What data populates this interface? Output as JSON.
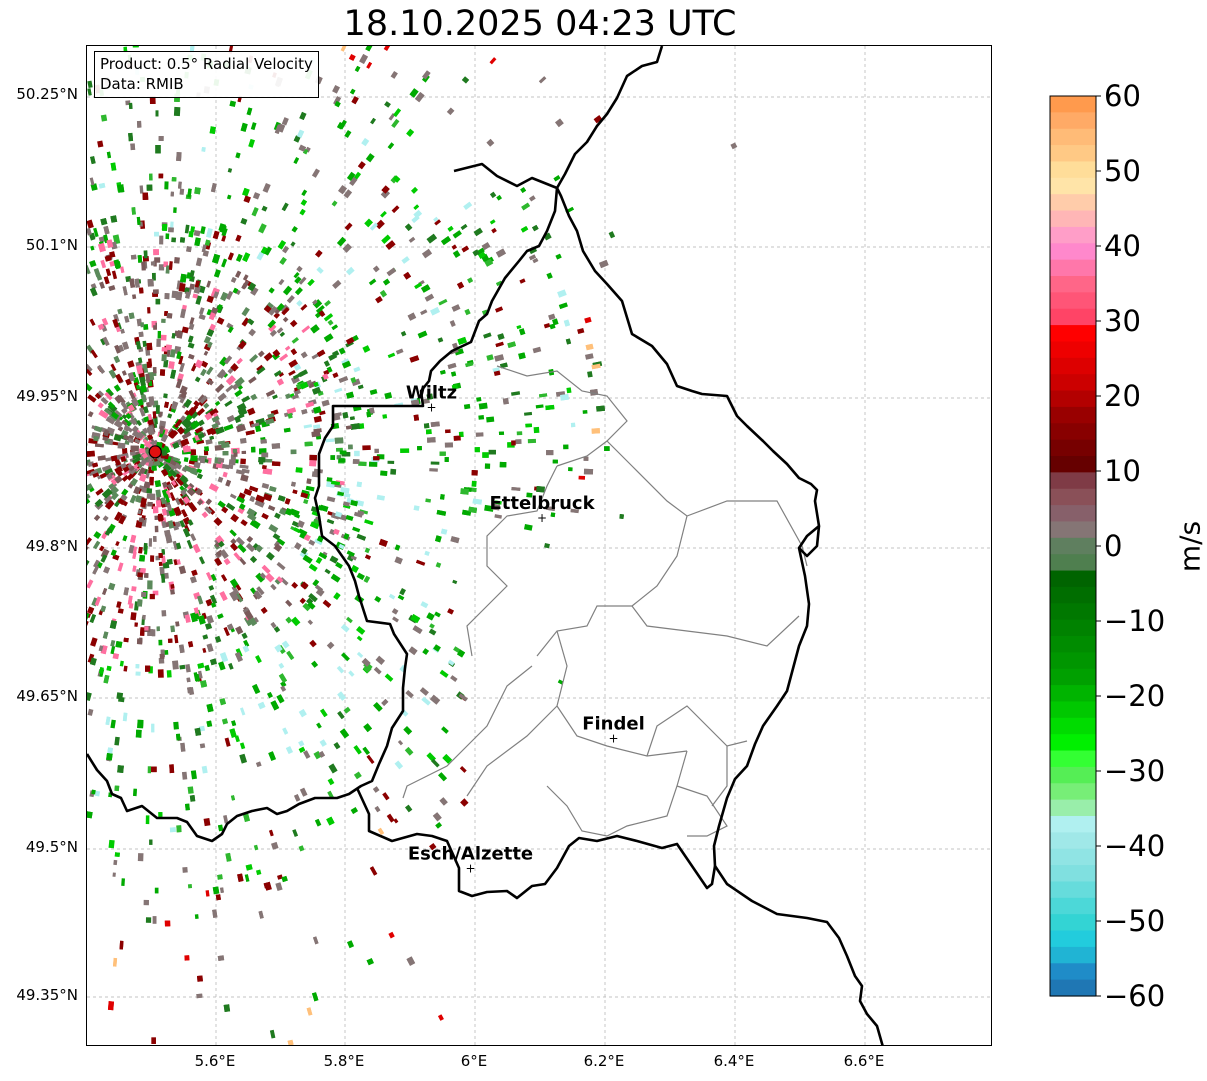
{
  "title": "18.10.2025 04:23 UTC",
  "info_box": {
    "product": "Product: 0.5° Radial Velocity",
    "data": "Data: RMIB"
  },
  "axes": {
    "lat_ticks": [
      "50.25°N",
      "50.1°N",
      "49.95°N",
      "49.8°N",
      "49.65°N",
      "49.5°N",
      "49.35°N"
    ],
    "lon_ticks": [
      "5.6°E",
      "5.8°E",
      "6°E",
      "6.2°E",
      "6.4°E",
      "6.6°E"
    ]
  },
  "cities": [
    {
      "name": "Wiltz",
      "lon": 5.93,
      "lat": 49.96
    },
    {
      "name": "Ettelbruck",
      "lon": 6.1,
      "lat": 49.85
    },
    {
      "name": "Findel",
      "lon": 6.21,
      "lat": 49.63
    },
    {
      "name": "Esch/Alzette",
      "lon": 5.99,
      "lat": 49.5
    }
  ],
  "radar_site": {
    "lon": 5.505,
    "lat": 49.915,
    "color": "#e01010"
  },
  "colorbar": {
    "label": "m/s",
    "min": -60,
    "max": 60,
    "ticks": [
      "60",
      "50",
      "40",
      "30",
      "20",
      "10",
      "0",
      "−10",
      "−20",
      "−30",
      "−40",
      "−50",
      "−60"
    ]
  },
  "colors": {
    "strong_green": "#00aa00",
    "dark_green": "#1f7a1f",
    "gray": "#857575",
    "dark_red": "#8b0000",
    "red": "#e00000",
    "border": "#000000",
    "canton_border": "#808080"
  }
}
